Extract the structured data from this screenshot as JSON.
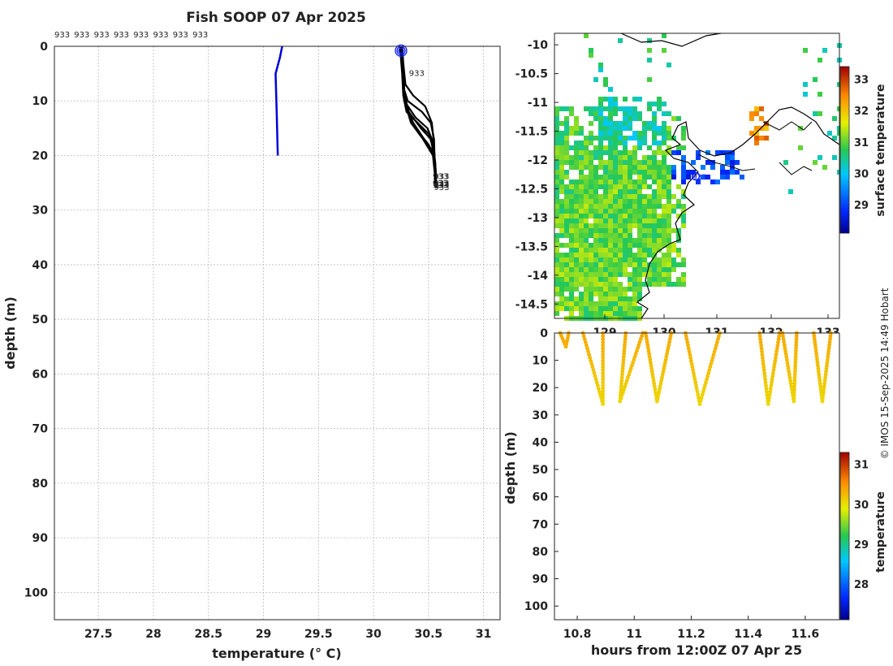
{
  "title": "Fish SOOP 07 Apr 2025",
  "credit": "© IMOS 15-Sep-2025 14:49 Hobart",
  "profile_id": "933",
  "chart_data": [
    {
      "id": "profiles",
      "type": "line",
      "xlabel": "temperature (° C)",
      "ylabel": "depth (m)",
      "xlim": [
        27.1,
        31.15
      ],
      "ylim": [
        105,
        0
      ],
      "xticks": [
        "27.5",
        "28",
        "28.5",
        "29",
        "29.5",
        "30",
        "30.5",
        "31"
      ],
      "yticks": [
        "0",
        "10",
        "20",
        "30",
        "40",
        "50",
        "60",
        "70",
        "80",
        "90",
        "100"
      ],
      "grid": true,
      "top_labels": [
        "933",
        "933",
        "933",
        "933",
        "933",
        "933",
        "933",
        "933"
      ],
      "reference_profile": {
        "color": "#0000dd",
        "points": [
          [
            29.17,
            0
          ],
          [
            29.15,
            2
          ],
          [
            29.11,
            5
          ],
          [
            29.12,
            12
          ],
          [
            29.13,
            20
          ]
        ]
      },
      "profiles": [
        [
          [
            30.26,
            0
          ],
          [
            30.27,
            4
          ],
          [
            30.28,
            9
          ],
          [
            30.33,
            13
          ],
          [
            30.42,
            16
          ],
          [
            30.5,
            18
          ],
          [
            30.55,
            20
          ],
          [
            30.56,
            24
          ],
          [
            30.57,
            26
          ]
        ],
        [
          [
            30.25,
            0
          ],
          [
            30.27,
            5
          ],
          [
            30.28,
            10
          ],
          [
            30.36,
            14
          ],
          [
            30.46,
            17
          ],
          [
            30.53,
            19
          ],
          [
            30.56,
            22
          ],
          [
            30.57,
            25
          ]
        ],
        [
          [
            30.26,
            0
          ],
          [
            30.26,
            4
          ],
          [
            30.27,
            8
          ],
          [
            30.32,
            12
          ],
          [
            30.43,
            15
          ],
          [
            30.52,
            17
          ],
          [
            30.56,
            21
          ],
          [
            30.57,
            25
          ]
        ],
        [
          [
            30.24,
            0
          ],
          [
            30.26,
            5
          ],
          [
            30.27,
            9
          ],
          [
            30.3,
            12
          ],
          [
            30.4,
            14
          ],
          [
            30.5,
            16
          ],
          [
            30.55,
            19
          ],
          [
            30.57,
            24
          ]
        ],
        [
          [
            30.25,
            0
          ],
          [
            30.26,
            3
          ],
          [
            30.27,
            7
          ],
          [
            30.28,
            10
          ],
          [
            30.38,
            13
          ],
          [
            30.49,
            15
          ],
          [
            30.55,
            18
          ],
          [
            30.56,
            25
          ]
        ],
        [
          [
            30.26,
            0
          ],
          [
            30.27,
            4
          ],
          [
            30.28,
            8
          ],
          [
            30.31,
            10
          ],
          [
            30.44,
            12
          ],
          [
            30.52,
            14
          ],
          [
            30.55,
            17
          ],
          [
            30.56,
            25
          ]
        ],
        [
          [
            30.25,
            0
          ],
          [
            30.27,
            5
          ],
          [
            30.28,
            10
          ],
          [
            30.34,
            14
          ],
          [
            30.45,
            17
          ],
          [
            30.54,
            20
          ],
          [
            30.56,
            24
          ]
        ],
        [
          [
            30.26,
            0
          ],
          [
            30.27,
            3
          ],
          [
            30.29,
            7
          ],
          [
            30.36,
            9
          ],
          [
            30.47,
            11
          ],
          [
            30.53,
            14
          ],
          [
            30.55,
            18
          ],
          [
            30.56,
            25
          ]
        ]
      ]
    },
    {
      "id": "map",
      "type": "heatmap",
      "colorbar_label": "surface temperature",
      "colorbar_ticks": [
        "29",
        "30",
        "31",
        "32",
        "33"
      ],
      "colorbar_range": [
        28.1,
        33.4
      ],
      "ylim": [
        -14.75,
        -9.8
      ],
      "yticks": [
        "-10",
        "-10.5",
        "-11",
        "-11.5",
        "-12",
        "-12.5",
        "-13",
        "-13.5",
        "-14",
        "-14.5"
      ],
      "xticks": [
        "129",
        "130",
        "131",
        "132",
        "133"
      ],
      "track_label": "933"
    },
    {
      "id": "timeseries",
      "type": "scatter",
      "xlabel": "hours from 12:00Z 07 Apr 25",
      "ylabel": "depth (m)",
      "xlim": [
        10.72,
        11.72
      ],
      "ylim": [
        105,
        0
      ],
      "xticks": [
        "10.8",
        "11",
        "11.2",
        "11.4",
        "11.6"
      ],
      "yticks": [
        "0",
        "10",
        "20",
        "30",
        "40",
        "50",
        "60",
        "70",
        "80",
        "90",
        "100"
      ],
      "colorbar_label": "temperature",
      "colorbar_ticks": [
        "28",
        "29",
        "30",
        "31"
      ],
      "colorbar_range": [
        27.1,
        31.3
      ],
      "casts": [
        {
          "t_start": 10.74,
          "t_bottom": 10.76,
          "t_end": 10.77,
          "max_depth": 5
        },
        {
          "t_start": 10.82,
          "t_bottom": 10.89,
          "t_end": 10.89,
          "max_depth": 26
        },
        {
          "t_start": 10.97,
          "t_bottom": 10.95,
          "t_end": 11.03,
          "max_depth": 25
        },
        {
          "t_start": 11.04,
          "t_bottom": 11.08,
          "t_end": 11.13,
          "max_depth": 25
        },
        {
          "t_start": 11.18,
          "t_bottom": 11.23,
          "t_end": 11.3,
          "max_depth": 26
        },
        {
          "t_start": 11.44,
          "t_bottom": 11.47,
          "t_end": 11.51,
          "max_depth": 26
        },
        {
          "t_start": 11.52,
          "t_bottom": 11.56,
          "t_end": 11.57,
          "max_depth": 25
        },
        {
          "t_start": 11.63,
          "t_bottom": 11.66,
          "t_end": 11.69,
          "max_depth": 25
        }
      ]
    }
  ]
}
